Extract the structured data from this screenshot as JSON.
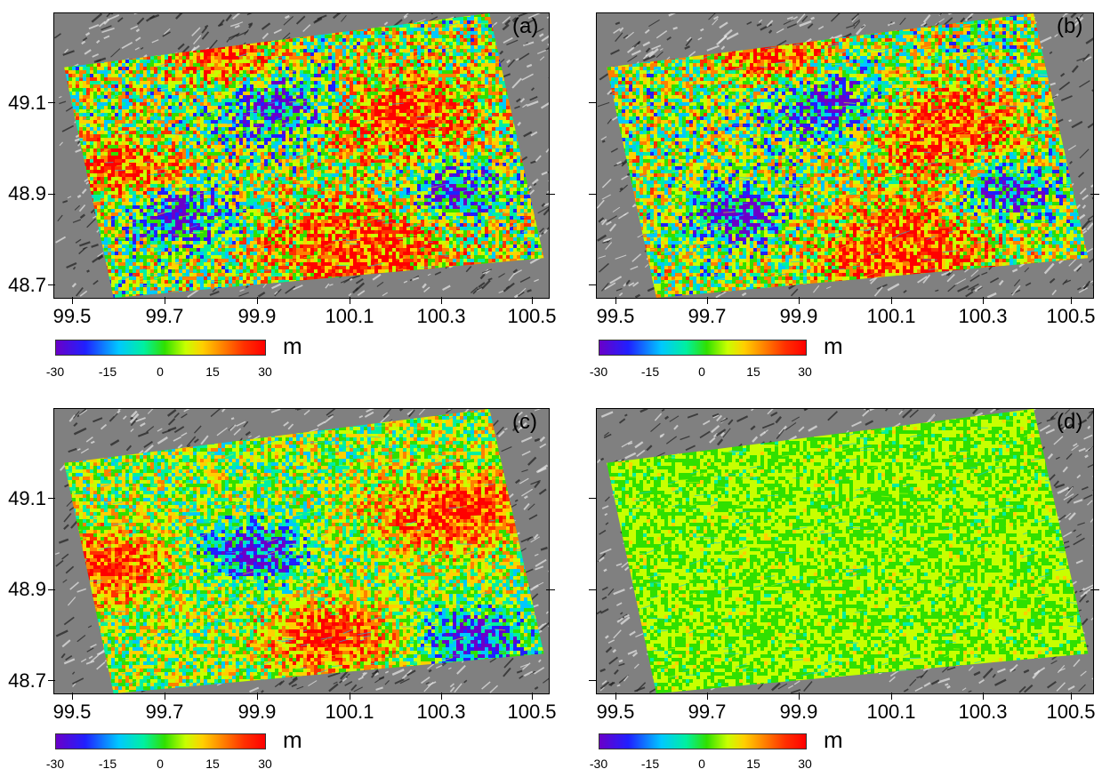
{
  "panels": [
    {
      "id": "a",
      "label": "(a)",
      "style": "a"
    },
    {
      "id": "b",
      "label": "(b)",
      "style": "b"
    },
    {
      "id": "c",
      "label": "(c)",
      "style": "c"
    },
    {
      "id": "d",
      "label": "(d)",
      "style": "d"
    }
  ],
  "axes": {
    "x_ticks": [
      "99.5",
      "99.7",
      "99.9",
      "100.1",
      "100.3",
      "100.5"
    ],
    "y_ticks": [
      "49.1",
      "48.9",
      "48.7"
    ]
  },
  "colorbar": {
    "ticks": [
      "-30",
      "-15",
      "0",
      "15",
      "30"
    ],
    "unit": "m",
    "range": [
      -30,
      30
    ],
    "colors": [
      "#6a00c8",
      "#2020ff",
      "#00c8ff",
      "#00f0a0",
      "#30e000",
      "#c8ff00",
      "#ffd000",
      "#ff8000",
      "#ff3000",
      "#ff0000"
    ]
  },
  "colors": {
    "relief_base": "#808080",
    "relief_light": "#e8e8e8",
    "relief_dark": "#202020"
  }
}
